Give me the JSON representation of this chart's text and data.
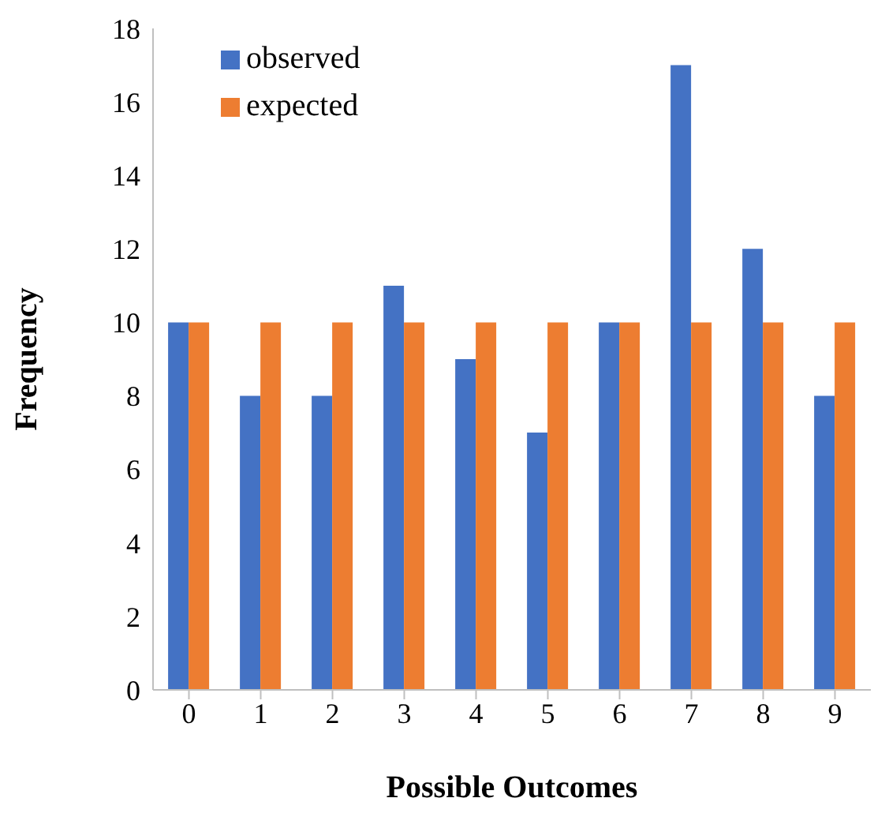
{
  "chart_data": {
    "type": "bar",
    "xlabel": "Possible Outcomes",
    "ylabel": "Frequency",
    "categories": [
      "0",
      "1",
      "2",
      "3",
      "4",
      "5",
      "6",
      "7",
      "8",
      "9"
    ],
    "series": [
      {
        "name": "observed",
        "color": "#4472c4",
        "values": [
          10,
          8,
          8,
          11,
          9,
          7,
          10,
          17,
          12,
          8
        ]
      },
      {
        "name": "expected",
        "color": "#ed7d31",
        "values": [
          10,
          10,
          10,
          10,
          10,
          10,
          10,
          10,
          10,
          10
        ]
      }
    ],
    "ylim": [
      0,
      18
    ],
    "yticks": [
      0,
      2,
      4,
      6,
      8,
      10,
      12,
      14,
      16,
      18
    ],
    "grid": false,
    "legend": "top left"
  }
}
